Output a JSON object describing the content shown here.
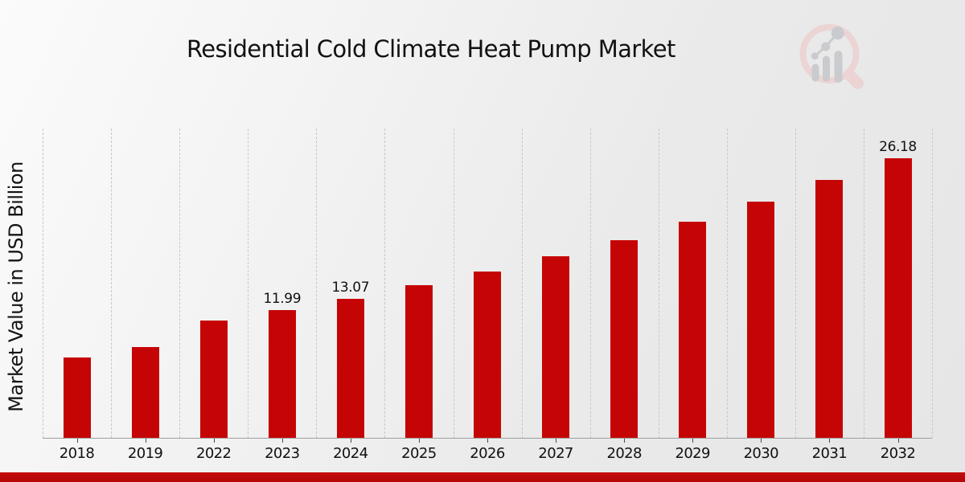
{
  "title": "Residential Cold Climate Heat Pump Market",
  "ylabel": "Market Value in USD Billion",
  "colors": {
    "bar": "#c50505",
    "footer_band": "#b80909",
    "gridline": "#c7c7c7",
    "logo_ring": "#ecd4d4",
    "logo_bars": "#c9cbce"
  },
  "footer": {},
  "logo": {
    "name": "magnifier-bar-chart-logo"
  },
  "chart_data": {
    "type": "bar",
    "title": "Residential Cold Climate Heat Pump Market",
    "xlabel": "",
    "ylabel": "Market Value in USD Billion",
    "unit": "USD Billion",
    "categories": [
      "2018",
      "2019",
      "2022",
      "2023",
      "2024",
      "2025",
      "2026",
      "2027",
      "2028",
      "2029",
      "2030",
      "2031",
      "2032"
    ],
    "values": [
      7.55,
      8.48,
      11.0,
      11.99,
      13.07,
      14.32,
      15.62,
      17.04,
      18.54,
      20.24,
      22.14,
      24.16,
      26.18
    ],
    "point_labels": [
      "",
      "",
      "",
      "11.99",
      "13.07",
      "",
      "",
      "",
      "",
      "",
      "",
      "",
      "26.18"
    ],
    "ylim": [
      0,
      29
    ],
    "grid": "vertical-dashed",
    "legend": "none",
    "bar_color": "#c50505"
  }
}
